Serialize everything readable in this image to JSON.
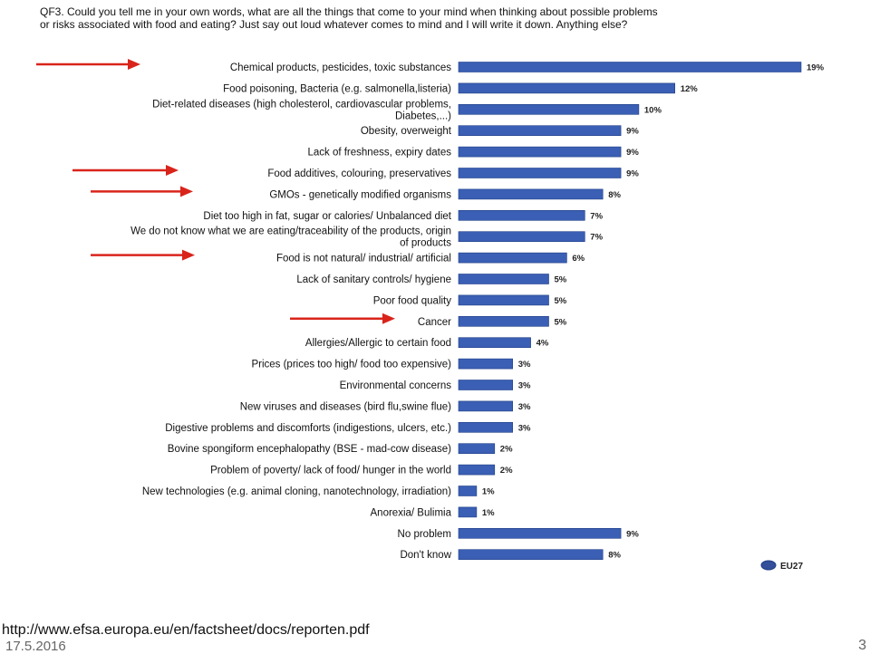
{
  "chart_data": {
    "type": "bar",
    "orientation": "horizontal",
    "title": [
      "QF3. Could you tell me in your own words, what are all the things that come to your mind when thinking about possible problems",
      "or risks associated with food and eating? Just say out loud whatever comes to mind and I will write it down. Anything else?"
    ],
    "categories": [
      [
        "Chemical products, pesticides, toxic substances"
      ],
      [
        "Food poisoning, Bacteria (e.g. salmonella,listeria)"
      ],
      [
        "Diet-related diseases (high cholesterol, cardiovascular problems,",
        "Diabetes,...)"
      ],
      [
        "Obesity, overweight"
      ],
      [
        "Lack of freshness, expiry dates"
      ],
      [
        "Food additives, colouring, preservatives"
      ],
      [
        "GMOs - genetically modified organisms"
      ],
      [
        "Diet too high in fat, sugar or calories/ Unbalanced diet"
      ],
      [
        "We do not know what we are eating/traceability of the products, origin",
        "of products"
      ],
      [
        "Food is not natural/ industrial/ artificial"
      ],
      [
        "Lack of sanitary controls/ hygiene"
      ],
      [
        "Poor food quality"
      ],
      [
        "Cancer"
      ],
      [
        "Allergies/Allergic to certain food"
      ],
      [
        "Prices (prices too high/ food too expensive)"
      ],
      [
        "Environmental concerns"
      ],
      [
        "New viruses and diseases (bird flu,swine flue)"
      ],
      [
        "Digestive problems and discomforts (indigestions, ulcers, etc.)"
      ],
      [
        "Bovine spongiform encephalopathy (BSE - mad-cow disease)"
      ],
      [
        "Problem of poverty/ lack of food/ hunger in the world"
      ],
      [
        "New technologies (e.g. animal cloning, nanotechnology, irradiation)"
      ],
      [
        "Anorexia/ Bulimia"
      ],
      [
        "No problem"
      ],
      [
        "Don't know"
      ]
    ],
    "series": [
      {
        "name": "EU27",
        "values": [
          19,
          12,
          10,
          9,
          9,
          9,
          8,
          7,
          7,
          6,
          5,
          5,
          5,
          4,
          3,
          3,
          3,
          3,
          2,
          2,
          1,
          1,
          9,
          8
        ],
        "value_labels": [
          "19%",
          "12%",
          "10%",
          "9%",
          "9%",
          "9%",
          "8%",
          "7%",
          "7%",
          "6%",
          "5%",
          "5%",
          "5%",
          "4%",
          "3%",
          "3%",
          "3%",
          "3%",
          "2%",
          "2%",
          "1%",
          "1%",
          "9%",
          "8%"
        ]
      }
    ],
    "highlighted_categories": [
      0,
      5,
      6,
      9,
      12
    ],
    "xlim": [
      0,
      19
    ],
    "grid": false,
    "legend_position": "bottom-right",
    "colors": {
      "bar": "#3a5fb4",
      "bar_edge": "#1f3d86",
      "arrow": "#d9241b",
      "legend_marker": "#34509a"
    }
  },
  "footer": {
    "url": "http://www.efsa.europa.eu/en/factsheet/docs/reporten.pdf",
    "date": "17.5.2016",
    "page_number": "3"
  }
}
